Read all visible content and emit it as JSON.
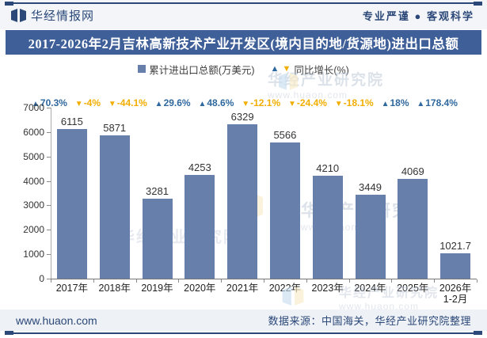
{
  "header": {
    "brand": "华经情报网",
    "tagline": "专业严谨 ● 客观科学"
  },
  "title": "2017-2026年2月吉林高新技术产业开发区(境内目的地/货源地)进出口总额",
  "legend": {
    "bar_label": "累计进出口总额(万美元)",
    "growth_label": "同比增长(%)"
  },
  "chart_data": {
    "type": "bar",
    "title": "2017-2026年2月吉林高新技术产业开发区(境内目的地/货源地)进出口总额",
    "categories": [
      "2017年",
      "2018年",
      "2019年",
      "2020年",
      "2021年",
      "2022年",
      "2023年",
      "2024年",
      "2025年",
      "2026年\n1-2月"
    ],
    "series": [
      {
        "name": "累计进出口总额(万美元)",
        "type": "bar",
        "values": [
          6115,
          5871,
          3281,
          4253,
          6329,
          5566,
          4210,
          3449,
          4069,
          1021.7
        ]
      },
      {
        "name": "同比增长(%)",
        "type": "markers",
        "values": [
          70.3,
          -4,
          -44.1,
          29.6,
          48.6,
          -12.1,
          -24.4,
          -18.1,
          18,
          178.4
        ],
        "labels": [
          "70.3%",
          "-4%",
          "-44.1%",
          "29.6%",
          "48.6%",
          "-12.1%",
          "-24.4%",
          "-18.1%",
          "18%",
          "178.4%"
        ]
      }
    ],
    "ylim": [
      0,
      7000
    ],
    "yticks": [
      0,
      1000,
      2000,
      3000,
      4000,
      5000,
      6000,
      7000
    ],
    "grid": false,
    "legend_position": "top"
  },
  "footer": {
    "site": "www.huaon.com",
    "source": "数据来源：中国海关，华经产业研究院整理"
  },
  "watermark": {
    "text": "华经产业研究院",
    "url": "www.huaon.com"
  },
  "colors": {
    "bar": "#6780AB",
    "positive": "#2F689E",
    "negative": "#F2AE00",
    "banner": "#3F5F99",
    "navy": "#2B4878",
    "value_label": "#333333"
  }
}
